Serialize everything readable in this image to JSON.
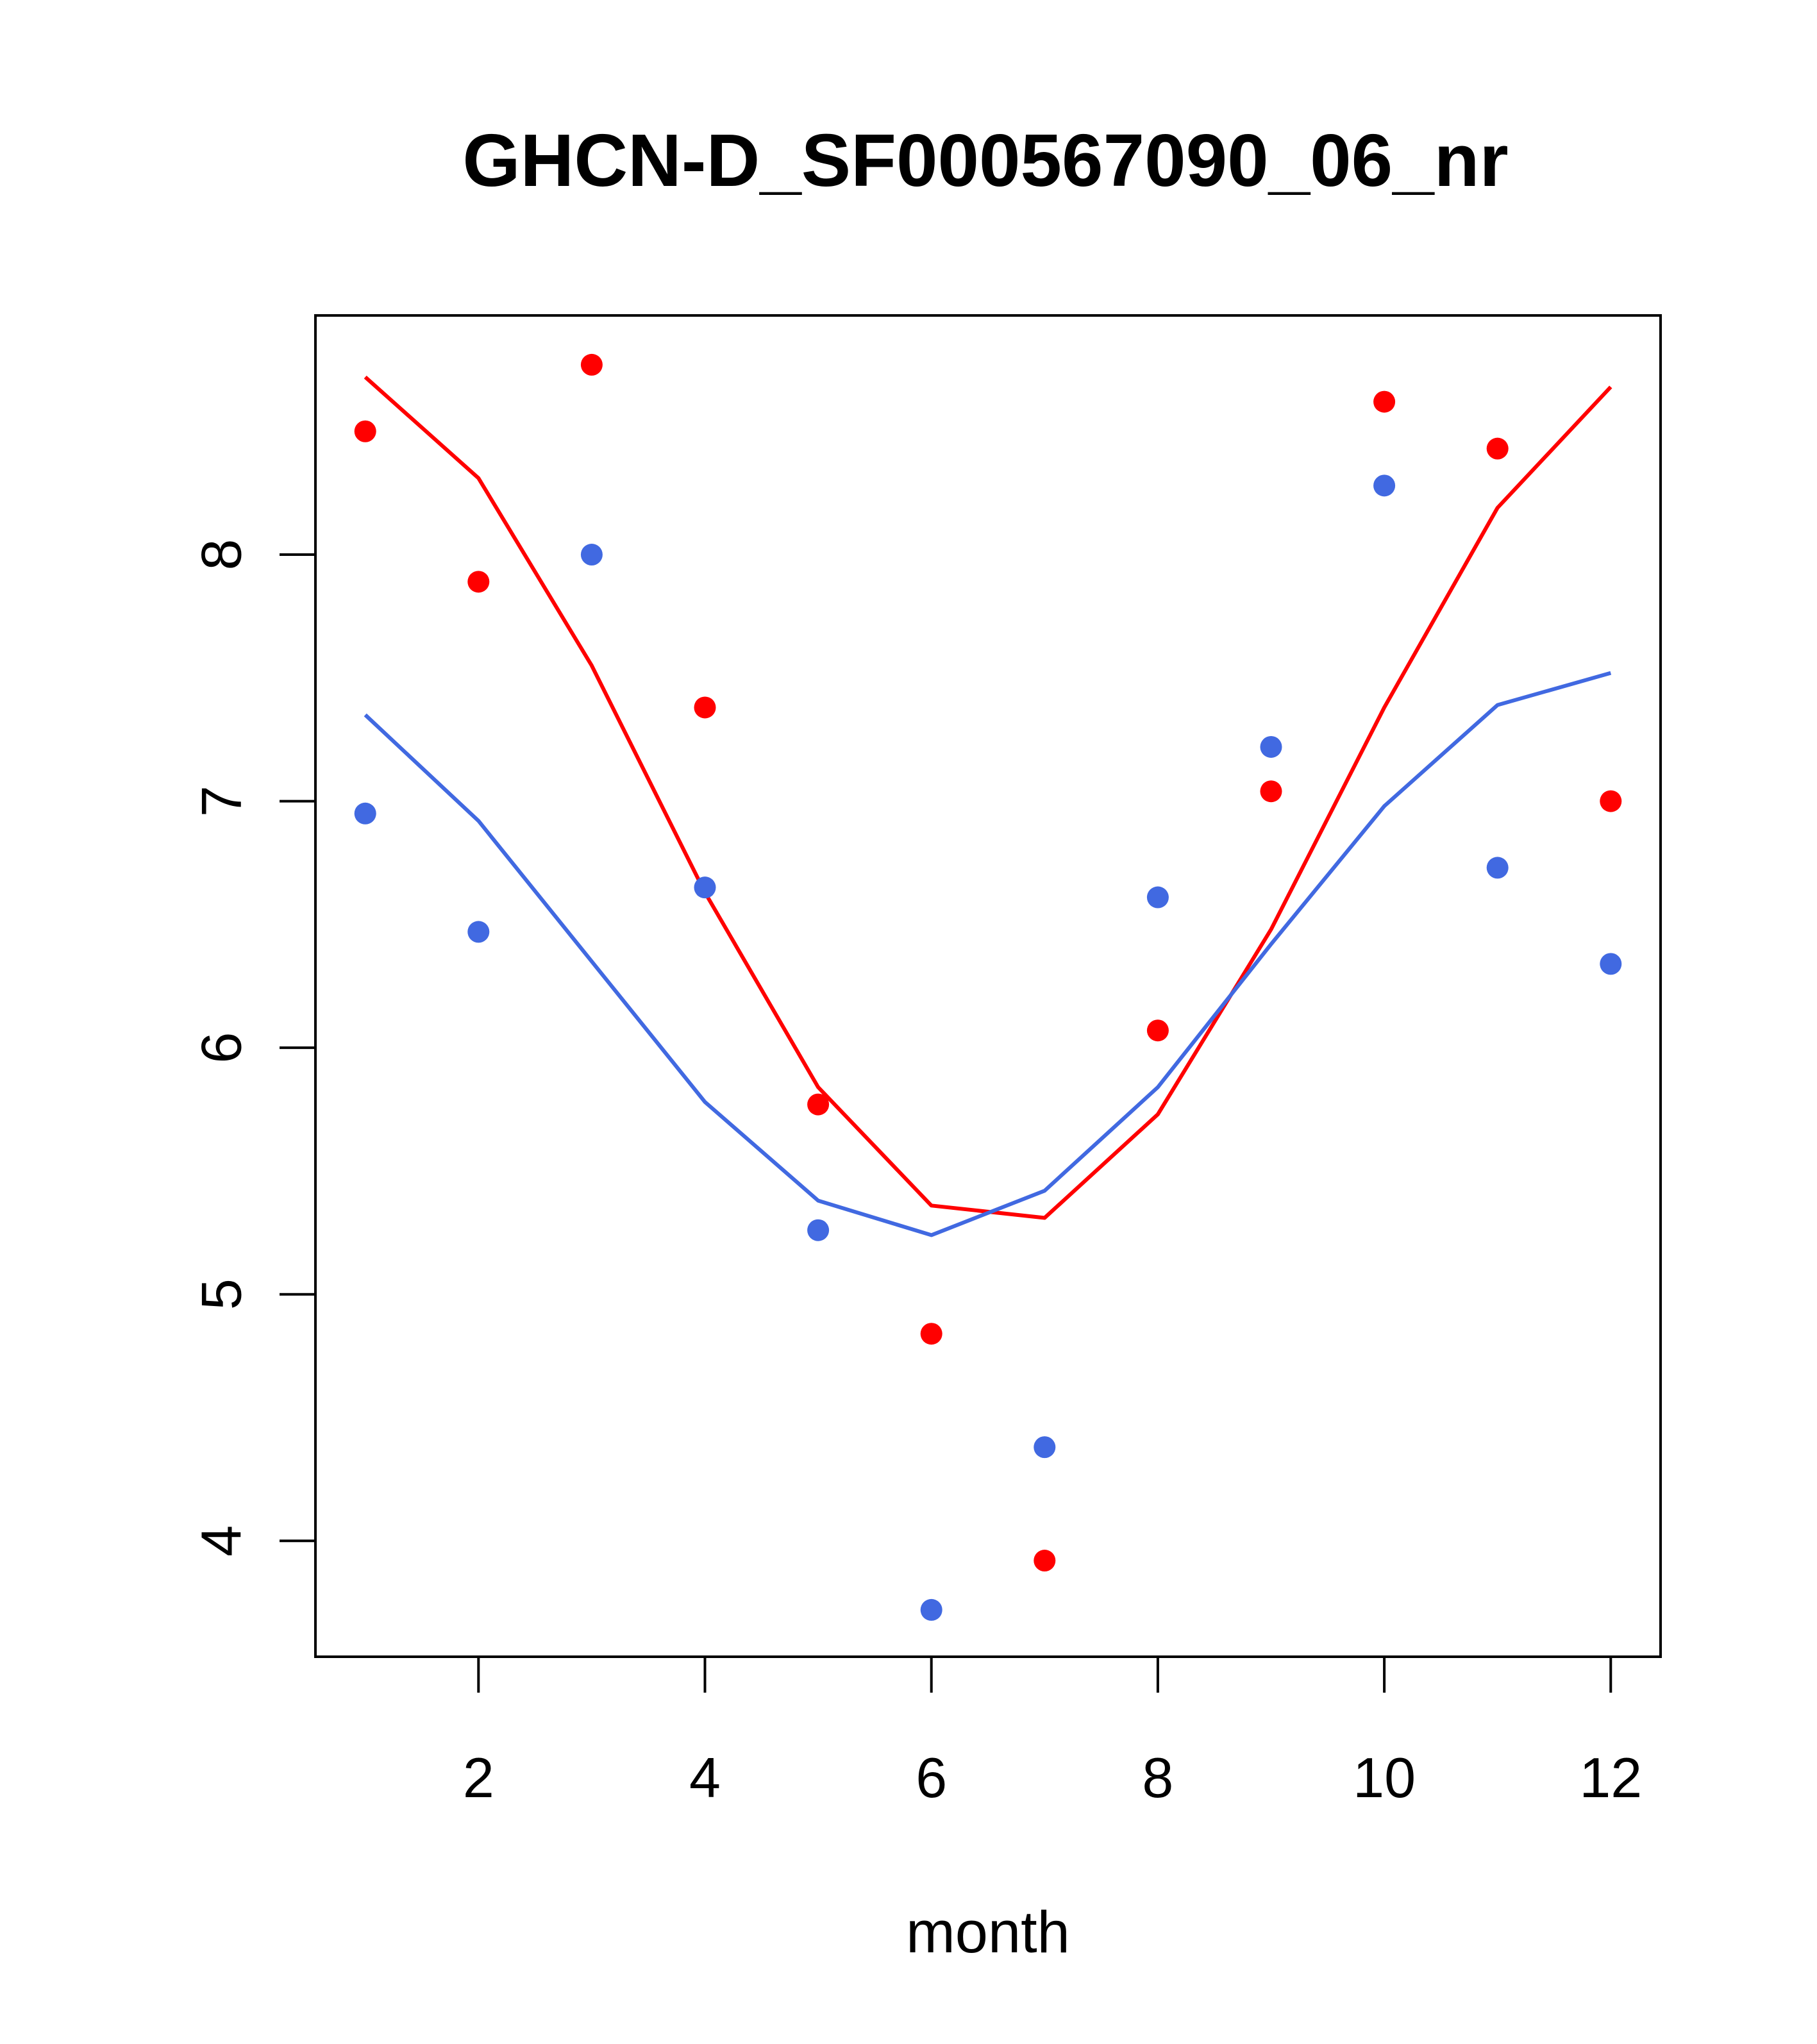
{
  "chart_data": {
    "type": "scatter",
    "title": "GHCN-D_SF000567090_06_nr",
    "xlabel": "month",
    "ylabel": "",
    "xlim": [
      0.56,
      12.44
    ],
    "ylim": [
      3.53,
      8.97
    ],
    "xticks": [
      2,
      4,
      6,
      8,
      10,
      12
    ],
    "yticks": [
      4,
      5,
      6,
      7,
      8
    ],
    "grid": false,
    "legend": "none",
    "series": [
      {
        "color": "#FF0000",
        "points_x": [
          1,
          2,
          3,
          4,
          5,
          6,
          7,
          8,
          9,
          10,
          11,
          12
        ],
        "points_y": [
          8.5,
          7.89,
          8.77,
          7.38,
          5.77,
          4.84,
          3.92,
          6.07,
          7.04,
          8.62,
          8.43,
          7.0
        ],
        "line_x": [
          1,
          2,
          3,
          4,
          5,
          6,
          7,
          8,
          9,
          10,
          11,
          12
        ],
        "line_y": [
          8.72,
          8.31,
          7.55,
          6.63,
          5.84,
          5.36,
          5.31,
          5.73,
          6.48,
          7.38,
          8.19,
          8.68
        ]
      },
      {
        "color": "#4169E1",
        "points_x": [
          1,
          2,
          3,
          4,
          5,
          6,
          7,
          8,
          9,
          10,
          11,
          12
        ],
        "points_y": [
          6.95,
          6.47,
          8.0,
          6.65,
          5.26,
          3.72,
          4.38,
          6.61,
          7.22,
          8.28,
          6.73,
          6.34
        ],
        "line_x": [
          1,
          2,
          3,
          4,
          5,
          6,
          7,
          8,
          9,
          10,
          11,
          12
        ],
        "line_y": [
          7.35,
          6.92,
          6.35,
          5.78,
          5.38,
          5.24,
          5.42,
          5.84,
          6.42,
          6.98,
          7.39,
          7.52
        ]
      }
    ]
  }
}
